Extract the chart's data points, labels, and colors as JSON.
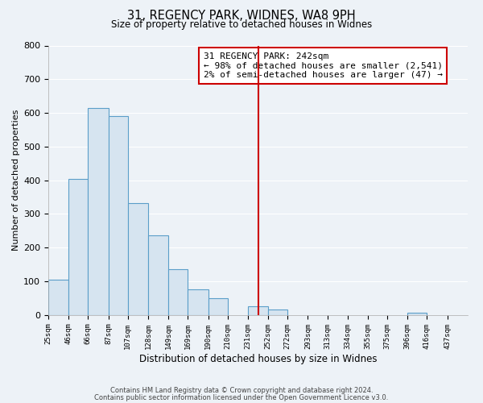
{
  "title1": "31, REGENCY PARK, WIDNES, WA8 9PH",
  "title2": "Size of property relative to detached houses in Widnes",
  "xlabel": "Distribution of detached houses by size in Widnes",
  "ylabel": "Number of detached properties",
  "bins": [
    25,
    46,
    66,
    87,
    107,
    128,
    149,
    169,
    190,
    210,
    231,
    252,
    272,
    293,
    313,
    334,
    355,
    375,
    396,
    416,
    437
  ],
  "counts": [
    105,
    403,
    614,
    591,
    331,
    237,
    136,
    76,
    50,
    0,
    25,
    15,
    0,
    0,
    0,
    0,
    0,
    0,
    5,
    0,
    0
  ],
  "bar_color": "#d6e4f0",
  "bar_edge_color": "#5b9ec9",
  "vline_x": 242,
  "vline_color": "#cc0000",
  "annotation_title": "31 REGENCY PARK: 242sqm",
  "annotation_line1": "← 98% of detached houses are smaller (2,541)",
  "annotation_line2": "2% of semi-detached houses are larger (47) →",
  "annotation_box_facecolor": "#ffffff",
  "annotation_box_edgecolor": "#cc0000",
  "tick_labels": [
    "25sqm",
    "46sqm",
    "66sqm",
    "87sqm",
    "107sqm",
    "128sqm",
    "149sqm",
    "169sqm",
    "190sqm",
    "210sqm",
    "231sqm",
    "252sqm",
    "272sqm",
    "293sqm",
    "313sqm",
    "334sqm",
    "355sqm",
    "375sqm",
    "396sqm",
    "416sqm",
    "437sqm"
  ],
  "ylim": [
    0,
    800
  ],
  "yticks": [
    0,
    100,
    200,
    300,
    400,
    500,
    600,
    700,
    800
  ],
  "footer1": "Contains HM Land Registry data © Crown copyright and database right 2024.",
  "footer2": "Contains public sector information licensed under the Open Government Licence v3.0.",
  "background_color": "#edf2f7",
  "grid_color": "#ffffff"
}
